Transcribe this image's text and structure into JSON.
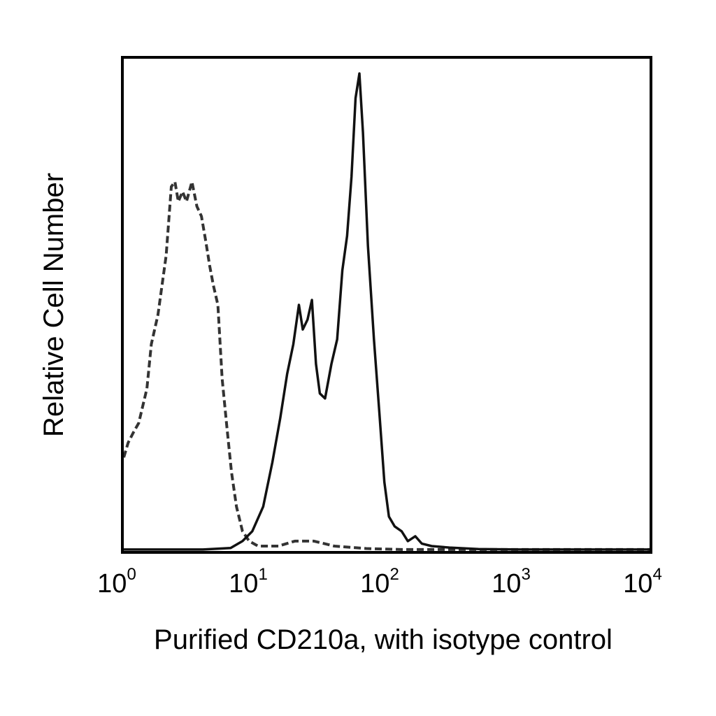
{
  "chart_data": {
    "type": "line",
    "x_scale": "log",
    "xlim": [
      1,
      10000
    ],
    "ylim": [
      0,
      100
    ],
    "grid": false,
    "legend": "none",
    "xlabel": "Purified CD210a, with isotype control",
    "ylabel": "Relative Cell Number",
    "x_ticks": [
      {
        "base": "10",
        "exp": "0",
        "value": 1
      },
      {
        "base": "10",
        "exp": "1",
        "value": 10
      },
      {
        "base": "10",
        "exp": "2",
        "value": 100
      },
      {
        "base": "10",
        "exp": "3",
        "value": 1000
      },
      {
        "base": "10",
        "exp": "4",
        "value": 10000
      }
    ],
    "series": [
      {
        "style": "dashed",
        "color": "#333333",
        "points": [
          [
            1.0,
            19
          ],
          [
            1.08,
            22
          ],
          [
            1.18,
            24
          ],
          [
            1.3,
            26
          ],
          [
            1.5,
            33
          ],
          [
            1.62,
            42
          ],
          [
            1.82,
            48
          ],
          [
            2.1,
            60
          ],
          [
            2.3,
            74
          ],
          [
            2.45,
            75
          ],
          [
            2.6,
            71
          ],
          [
            2.8,
            73
          ],
          [
            3.0,
            71
          ],
          [
            3.3,
            75
          ],
          [
            3.6,
            70
          ],
          [
            3.9,
            68
          ],
          [
            4.2,
            63
          ],
          [
            4.5,
            58
          ],
          [
            4.8,
            54
          ],
          [
            5.2,
            50
          ],
          [
            5.6,
            35
          ],
          [
            6.1,
            25
          ],
          [
            6.6,
            16
          ],
          [
            7.2,
            9
          ],
          [
            8.0,
            4
          ],
          [
            9.0,
            2
          ],
          [
            10.5,
            1
          ],
          [
            15,
            1
          ],
          [
            20,
            2
          ],
          [
            28,
            2
          ],
          [
            40,
            1
          ],
          [
            70,
            0.5
          ],
          [
            130,
            0.3
          ],
          [
            300,
            0.3
          ],
          [
            1000,
            0.3
          ],
          [
            10000,
            0.3
          ]
        ]
      },
      {
        "style": "solid",
        "color": "#111111",
        "points": [
          [
            1.0,
            0.3
          ],
          [
            4.0,
            0.3
          ],
          [
            6.5,
            0.6
          ],
          [
            8.0,
            2
          ],
          [
            9.5,
            4
          ],
          [
            11.5,
            9
          ],
          [
            13.5,
            18
          ],
          [
            15.5,
            27
          ],
          [
            17.5,
            36
          ],
          [
            19.5,
            42
          ],
          [
            21.5,
            50
          ],
          [
            23,
            45
          ],
          [
            25,
            47
          ],
          [
            27,
            51
          ],
          [
            29,
            38
          ],
          [
            31,
            32
          ],
          [
            34,
            31
          ],
          [
            38,
            38
          ],
          [
            42,
            43
          ],
          [
            46,
            57
          ],
          [
            50,
            64
          ],
          [
            54,
            76
          ],
          [
            58,
            92
          ],
          [
            62,
            97
          ],
          [
            66,
            85
          ],
          [
            72,
            62
          ],
          [
            80,
            43
          ],
          [
            88,
            28
          ],
          [
            96,
            14
          ],
          [
            104,
            7
          ],
          [
            115,
            5
          ],
          [
            130,
            4
          ],
          [
            145,
            2
          ],
          [
            165,
            3
          ],
          [
            185,
            1.5
          ],
          [
            220,
            1
          ],
          [
            300,
            0.7
          ],
          [
            500,
            0.4
          ],
          [
            1000,
            0.3
          ],
          [
            10000,
            0.3
          ]
        ]
      }
    ]
  }
}
